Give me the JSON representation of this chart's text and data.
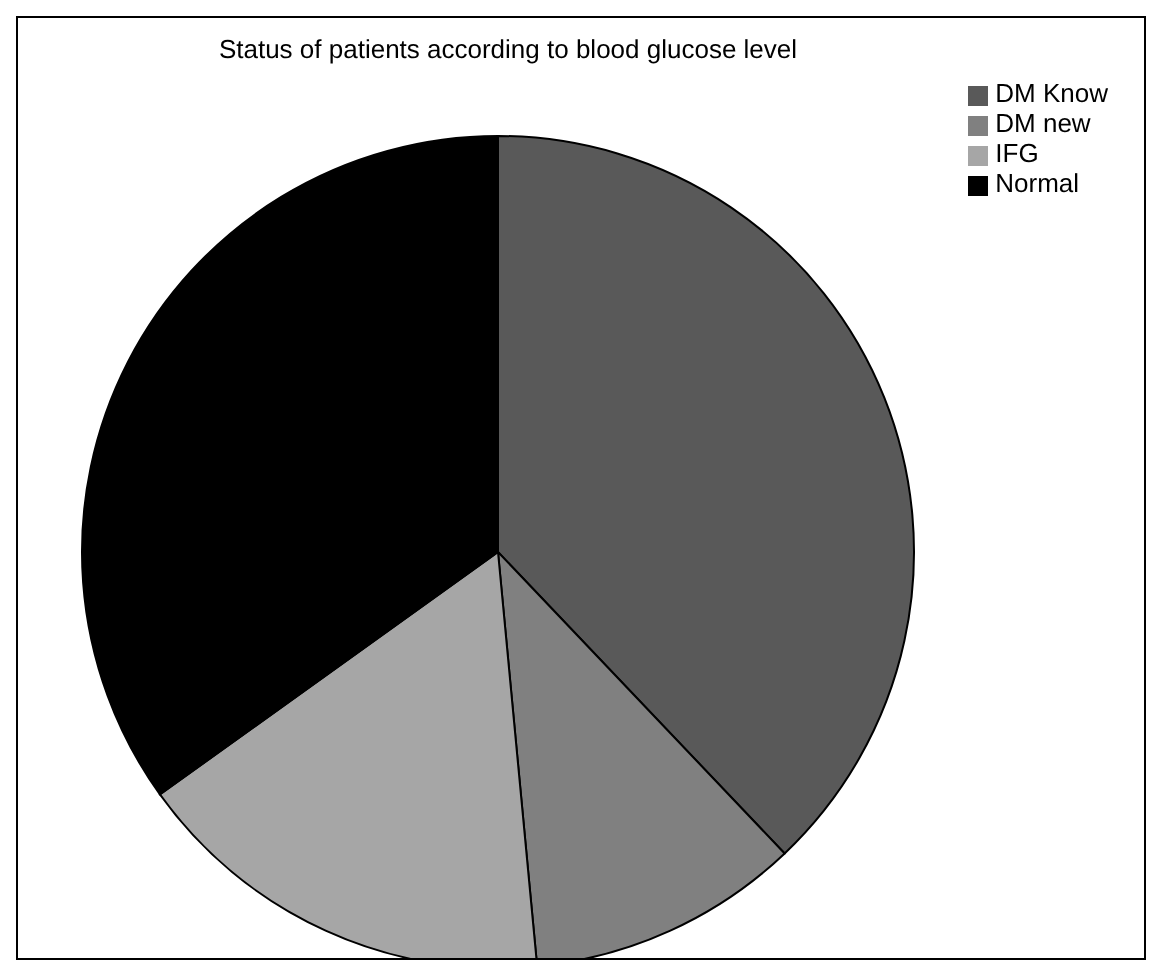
{
  "chart_data": {
    "type": "pie",
    "title": "Status of patients according to blood glucose level",
    "categories": [
      "DM Know",
      "DM new",
      "IFG",
      "Normal"
    ],
    "values": [
      37.9,
      10.6,
      16.6,
      34.9
    ],
    "colors": [
      "#595959",
      "#808080",
      "#a6a6a6",
      "#000000"
    ],
    "legend": "top right"
  }
}
